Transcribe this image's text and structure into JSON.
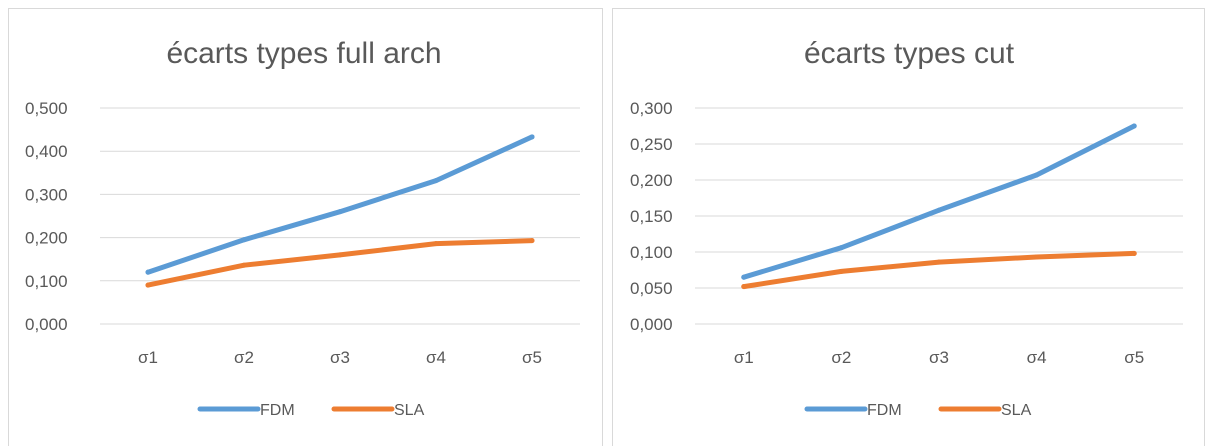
{
  "colors": {
    "FDM": "#5b9bd5",
    "SLA": "#ed7d31",
    "grid": "#d9d9d9",
    "text": "#595959"
  },
  "chart_data": [
    {
      "type": "line",
      "title": "écarts types full arch",
      "categories": [
        "σ1",
        "σ2",
        "σ3",
        "σ4",
        "σ5"
      ],
      "series": [
        {
          "name": "FDM",
          "values": [
            0.12,
            0.195,
            0.26,
            0.332,
            0.433
          ]
        },
        {
          "name": "SLA",
          "values": [
            0.09,
            0.136,
            0.16,
            0.186,
            0.193
          ]
        }
      ],
      "ylim": [
        0,
        0.5
      ],
      "yticks": [
        "0,000",
        "0,100",
        "0,200",
        "0,300",
        "0,400",
        "0,500"
      ],
      "grid": true,
      "legend": "bottom"
    },
    {
      "type": "line",
      "title": "écarts types cut",
      "categories": [
        "σ1",
        "σ2",
        "σ3",
        "σ4",
        "σ5"
      ],
      "series": [
        {
          "name": "FDM",
          "values": [
            0.065,
            0.106,
            0.158,
            0.207,
            0.275
          ]
        },
        {
          "name": "SLA",
          "values": [
            0.052,
            0.073,
            0.086,
            0.093,
            0.098
          ]
        }
      ],
      "ylim": [
        0,
        0.3
      ],
      "yticks": [
        "0,000",
        "0,050",
        "0,100",
        "0,150",
        "0,200",
        "0,250",
        "0,300"
      ],
      "grid": true,
      "legend": "bottom"
    }
  ]
}
